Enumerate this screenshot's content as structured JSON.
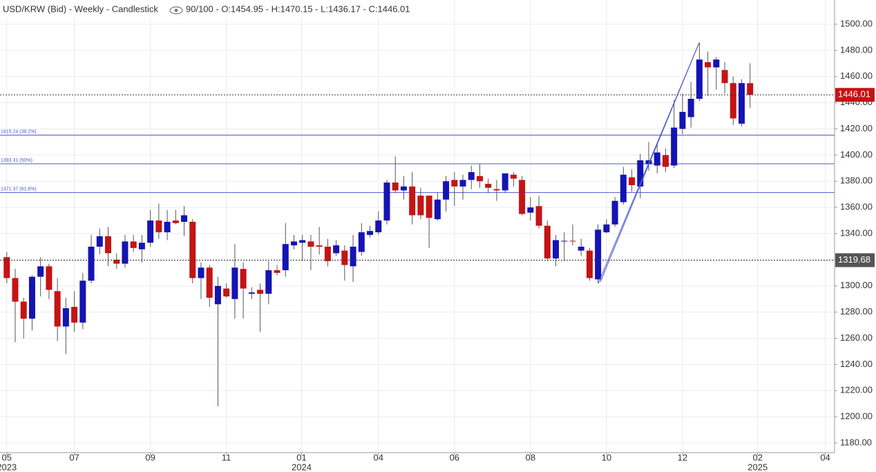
{
  "chart_data": {
    "type": "candlestick",
    "title": "USD/KRW (Bid) - Weekly - Candlestick",
    "subtitle": "90/100 - O:1454.95 - H:1470.15 - L:1436.17 - C:1446.01",
    "up_color": "#1414b4",
    "down_color": "#c41414",
    "grid": true,
    "categories": [
      null,
      null,
      null,
      null,
      null,
      null,
      null,
      null,
      null,
      null,
      null,
      null,
      null,
      null,
      null,
      null,
      null,
      null,
      null,
      null,
      null,
      null,
      null,
      null,
      null,
      null,
      null,
      null,
      null,
      null,
      null,
      null,
      null,
      null,
      null,
      null,
      null,
      null,
      null,
      null,
      null,
      null,
      null,
      null,
      null,
      null,
      null,
      null,
      null,
      null,
      null,
      null,
      null,
      null,
      null,
      null,
      null,
      null,
      null,
      null,
      null,
      null,
      null,
      null,
      null,
      null,
      null,
      null,
      null,
      null,
      null,
      null,
      null,
      null,
      null,
      null,
      null,
      null,
      null,
      null,
      null,
      null,
      null,
      null,
      null,
      null,
      null,
      null,
      null
    ],
    "open": [
      1322,
      1306,
      1288,
      1275,
      1307,
      1315,
      1296,
      1269,
      1284,
      1272,
      1304,
      1330,
      1338,
      1320,
      1317,
      1334,
      1328,
      1333,
      1350,
      1341,
      1350,
      1349,
      1349,
      1306,
      1314,
      1286,
      1298,
      1290,
      1313,
      1294,
      1297,
      1294,
      1312,
      1312,
      1331,
      1333,
      1334,
      1331,
      1330,
      1325,
      1327,
      1315,
      1326,
      1339,
      1341,
      1350,
      1379,
      1373,
      1376,
      1369,
      1369,
      1351,
      1366,
      1381,
      1376,
      1381,
      1384,
      1378,
      1374,
      1373,
      1385,
      1381,
      1356,
      1361,
      1346,
      1321,
      1334,
      1334.5,
      1327,
      1327,
      1305,
      1341,
      1347,
      1364,
      1383,
      1376,
      1393,
      1392,
      1400,
      1392,
      1420,
      1429,
      1443,
      1471,
      1467,
      1465,
      1455,
      1424,
      1454.95
    ],
    "high": [
      1326,
      1313,
      1291,
      1308,
      1322,
      1317,
      1306,
      1291,
      1296,
      1310,
      1339,
      1344,
      1345,
      1325,
      1339,
      1339,
      1339,
      1358,
      1363,
      1358,
      1358,
      1361,
      1351,
      1318,
      1316,
      1307,
      1302,
      1332,
      1318,
      1299,
      1302,
      1319,
      1316,
      1348,
      1339,
      1339,
      1339,
      1345,
      1336,
      1335,
      1331,
      1339,
      1348,
      1346,
      1357,
      1381,
      1399,
      1384,
      1387,
      1375,
      1369,
      1371,
      1384,
      1387,
      1385,
      1392,
      1393,
      1382,
      1381,
      1386,
      1387,
      1384,
      1368,
      1369,
      1350,
      1339,
      1341,
      1347,
      1336,
      1329,
      1347,
      1351,
      1368,
      1391,
      1389,
      1401,
      1410,
      1409,
      1405,
      1442,
      1447,
      1456,
      1486,
      1479,
      1475,
      1471,
      1460,
      1458,
      1470.15
    ],
    "low": [
      1302,
      1257,
      1260,
      1266,
      1292,
      1290,
      1258,
      1248,
      1265,
      1267,
      1302,
      1324,
      1315,
      1313,
      1314,
      1326,
      1318,
      1330,
      1336,
      1335,
      1347,
      1338,
      1302,
      1290,
      1284,
      1208,
      1291,
      1275,
      1275,
      1290,
      1265,
      1286,
      1308,
      1307,
      1328,
      1319,
      1312,
      1324,
      1315,
      1323,
      1304,
      1303,
      1323,
      1337,
      1339,
      1347,
      1371,
      1366,
      1347,
      1351,
      1329,
      1350,
      1357,
      1361,
      1366,
      1374,
      1375,
      1371,
      1365,
      1371,
      1376,
      1354,
      1350,
      1344,
      1319,
      1315,
      1319,
      1331,
      1323,
      1304,
      1302,
      1340,
      1345,
      1362,
      1372,
      1367,
      1388,
      1386,
      1387,
      1390,
      1416,
      1421,
      1441,
      1445,
      1450,
      1447,
      1423,
      1422,
      1436.17
    ],
    "close": [
      1306,
      1288,
      1275,
      1307,
      1315,
      1297,
      1269,
      1283,
      1272,
      1304,
      1330,
      1338,
      1325,
      1317,
      1334,
      1329,
      1333,
      1350,
      1341,
      1349,
      1348,
      1354,
      1306,
      1314,
      1291,
      1300,
      1292,
      1314,
      1298,
      1295,
      1294,
      1312,
      1310,
      1332,
      1334,
      1335,
      1330,
      1330,
      1319,
      1331,
      1316,
      1330,
      1341,
      1342,
      1350,
      1379,
      1373,
      1376,
      1354,
      1354,
      1352,
      1366,
      1380,
      1376,
      1381,
      1387,
      1380,
      1375,
      1373,
      1386,
      1382,
      1355,
      1360,
      1346,
      1321,
      1335,
      1334.5,
      1334,
      1330,
      1306,
      1343,
      1347,
      1365,
      1385,
      1377,
      1396,
      1396,
      1402,
      1391,
      1421,
      1433,
      1443,
      1473,
      1467,
      1473,
      1455,
      1428,
      1455,
      1446.01
    ],
    "xlim": [
      -0.8,
      98
    ],
    "xticks": [
      {
        "value": 0,
        "label": "05"
      },
      {
        "value": 8,
        "label": "07"
      },
      {
        "value": 17,
        "label": "09"
      },
      {
        "value": 26,
        "label": "11"
      },
      {
        "value": 34.9,
        "label": "01"
      },
      {
        "value": 44,
        "label": "04"
      },
      {
        "value": 53,
        "label": "06"
      },
      {
        "value": 62,
        "label": "08"
      },
      {
        "value": 71,
        "label": "10"
      },
      {
        "value": 80,
        "label": "12"
      },
      {
        "value": 88.9,
        "label": "02"
      },
      {
        "value": 96.9,
        "label": "04"
      }
    ],
    "x_year_labels": [
      {
        "value": 0,
        "label": "2023"
      },
      {
        "value": 34.9,
        "label": "2024"
      },
      {
        "value": 88.9,
        "label": "2025"
      }
    ],
    "ylim": [
      1172.6,
      1518.5
    ],
    "yticks": [
      {
        "value": 1180,
        "label": "1180.00"
      },
      {
        "value": 1200,
        "label": "1200.00"
      },
      {
        "value": 1220,
        "label": "1220.00"
      },
      {
        "value": 1240,
        "label": "1240.00"
      },
      {
        "value": 1260,
        "label": "1260.00"
      },
      {
        "value": 1280,
        "label": "1280.00"
      },
      {
        "value": 1300,
        "label": "1300.00"
      },
      {
        "value": 1320,
        "label": "1320.00"
      },
      {
        "value": 1340,
        "label": "1340.00"
      },
      {
        "value": 1360,
        "label": "1360.00"
      },
      {
        "value": 1380,
        "label": "1380.00"
      },
      {
        "value": 1400,
        "label": "1400.00"
      },
      {
        "value": 1420,
        "label": "1420.00"
      },
      {
        "value": 1440,
        "label": "1440.00"
      },
      {
        "value": 1460,
        "label": "1460.00"
      },
      {
        "value": 1480,
        "label": "1480.00"
      },
      {
        "value": 1500,
        "label": "1500.00"
      }
    ],
    "fib_levels": [
      {
        "value": 1415.24,
        "label": "1415.24 (38.2%)"
      },
      {
        "value": 1393.31,
        "label": "1393.31 (50%)"
      },
      {
        "value": 1371.37,
        "label": "1371.37 (61.8%)"
      }
    ],
    "fib_color": "#4a55d0",
    "price_lines": [
      {
        "value": 1446.01,
        "label": "1446.01",
        "color": "#c41414"
      },
      {
        "value": 1319.68,
        "label": "1319.68",
        "color": "#555555"
      }
    ]
  }
}
